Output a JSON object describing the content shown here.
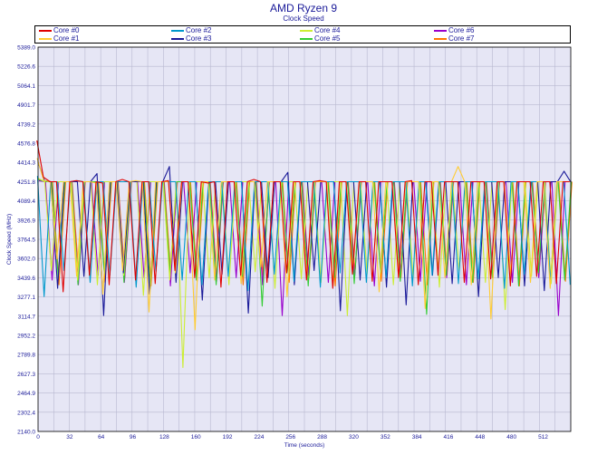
{
  "chart_data": {
    "type": "line",
    "title": "AMD Ryzen 9",
    "subtitle": "Clock Speed",
    "xlabel": "Time (seconds)",
    "ylabel": "Clock Speed (MHz)",
    "xlim": [
      0,
      540
    ],
    "ylim": [
      2140.0,
      5389.0
    ],
    "xticks": [
      "0",
      "32",
      "64",
      "96",
      "128",
      "160",
      "192",
      "224",
      "256",
      "288",
      "320",
      "352",
      "384",
      "416",
      "448",
      "480",
      "512"
    ],
    "xtick_values": [
      0,
      32,
      64,
      96,
      128,
      160,
      192,
      224,
      256,
      288,
      320,
      352,
      384,
      416,
      448,
      480,
      512
    ],
    "yticks": [
      "2140.0",
      "2302.4",
      "2464.9",
      "2627.3",
      "2789.8",
      "2952.2",
      "3114.7",
      "3277.1",
      "3439.6",
      "3602.0",
      "3764.5",
      "3926.9",
      "4089.4",
      "4251.8",
      "4414.3",
      "4576.8",
      "4739.2",
      "4901.7",
      "5064.1",
      "5226.6",
      "5389.0"
    ],
    "ytick_values": [
      2140.0,
      2302.4,
      2464.9,
      2627.3,
      2789.8,
      2952.2,
      3114.7,
      3277.1,
      3439.6,
      3602.0,
      3764.5,
      3926.9,
      4089.4,
      4251.8,
      4414.3,
      4576.8,
      4739.2,
      4901.7,
      5064.1,
      5226.6,
      5389.0
    ],
    "grid": true,
    "legend_position": "top",
    "series": [
      {
        "name": "Core #0",
        "color": "#e00000",
        "values": [
          4600,
          4290,
          4251,
          4251,
          3320,
          4251,
          4260,
          4251,
          3460,
          4251,
          4240,
          3380,
          4251,
          4270,
          4251,
          3420,
          4251,
          4251,
          3390,
          4251,
          4260,
          3500,
          4251,
          4251,
          3440,
          4251,
          4240,
          4251,
          3360,
          4251,
          4251,
          3460,
          4251,
          4270,
          4251,
          3400,
          4251,
          4251,
          3480,
          4251,
          4251,
          3420,
          4251,
          4260,
          4251,
          3350,
          4251,
          4251,
          3470,
          4251,
          4251,
          3410,
          4251,
          4251,
          4251,
          3440,
          4251,
          4260,
          3380,
          4251,
          4251,
          3460,
          4251,
          4251,
          4251,
          3400,
          4251,
          4251,
          4251,
          3430,
          4251,
          4251,
          3370,
          4251,
          4251,
          4251,
          3450,
          4251,
          4251,
          3390,
          4251,
          4251
        ]
      },
      {
        "name": "Core #1",
        "color": "#ffcc33",
        "values": [
          4450,
          4260,
          4251,
          3600,
          4251,
          4251,
          3450,
          4251,
          4251,
          4240,
          3300,
          4251,
          4251,
          3500,
          4251,
          4260,
          4251,
          3150,
          4251,
          4251,
          4251,
          3480,
          4251,
          4251,
          3000,
          4251,
          4251,
          3420,
          4251,
          4251,
          4251,
          3390,
          4251,
          4251,
          3530,
          4251,
          4251,
          4251,
          3280,
          4251,
          4251,
          3440,
          4251,
          4251,
          4251,
          3370,
          4251,
          4251,
          3500,
          4251,
          4251,
          4251,
          3320,
          4251,
          4251,
          3460,
          4251,
          4251,
          4251,
          3180,
          4251,
          4251,
          3440,
          4251,
          4380,
          4251,
          3380,
          4251,
          4251,
          3090,
          4251,
          4251,
          3470,
          4251,
          4251,
          3400,
          4251,
          4251,
          3350,
          4251,
          4251,
          4251
        ]
      },
      {
        "name": "Core #2",
        "color": "#0099cc",
        "values": [
          4300,
          3280,
          4251,
          4251,
          3500,
          4251,
          4260,
          4251,
          3400,
          4251,
          4251,
          3460,
          4251,
          4251,
          4251,
          3360,
          4251,
          4251,
          3490,
          4251,
          4251,
          4251,
          3420,
          4251,
          4251,
          3380,
          4251,
          4251,
          4251,
          3450,
          4251,
          4251,
          3330,
          4251,
          4251,
          4251,
          3470,
          4251,
          4251,
          3410,
          4251,
          4251,
          4251,
          3360,
          4251,
          4251,
          3480,
          4251,
          4251,
          4251,
          3400,
          4251,
          4251,
          3440,
          4251,
          4251,
          4251,
          3370,
          4251,
          4251,
          3460,
          4251,
          4251,
          4251,
          3390,
          4251,
          4251,
          3430,
          4251,
          4251,
          4251,
          3350,
          4251,
          4251,
          3470,
          4251,
          4251,
          4251,
          3410,
          4251,
          4251,
          3380
        ]
      },
      {
        "name": "Core #3",
        "color": "#1a1a99",
        "values": [
          4420,
          4260,
          4251,
          3350,
          4251,
          4251,
          4251,
          3450,
          4251,
          4320,
          3120,
          4251,
          4251,
          3480,
          4251,
          4251,
          4251,
          3300,
          4251,
          4251,
          4380,
          3400,
          4251,
          4251,
          4251,
          3250,
          4251,
          4251,
          3470,
          4251,
          4251,
          4251,
          3140,
          4251,
          4251,
          3440,
          4251,
          4251,
          4330,
          3380,
          4251,
          4251,
          3500,
          4251,
          4251,
          4251,
          3160,
          4251,
          4251,
          3420,
          4251,
          4251,
          4251,
          3360,
          4251,
          4251,
          3210,
          4251,
          4251,
          4251,
          3460,
          4251,
          4251,
          3390,
          4251,
          4251,
          4251,
          3280,
          4251,
          4251,
          3440,
          4251,
          4251,
          4251,
          3370,
          4251,
          4251,
          3330,
          4251,
          4251,
          4340,
          4251
        ]
      },
      {
        "name": "Core #4",
        "color": "#ccee33",
        "values": [
          4280,
          4251,
          3500,
          4251,
          4251,
          4251,
          3420,
          4251,
          4251,
          3380,
          4251,
          4251,
          4251,
          3460,
          4251,
          4251,
          3290,
          4251,
          4251,
          4251,
          3420,
          4251,
          2680,
          4251,
          4251,
          4251,
          3440,
          4251,
          4251,
          3380,
          4251,
          4251,
          4251,
          3490,
          4251,
          4251,
          3350,
          4251,
          4251,
          4251,
          3430,
          4251,
          4251,
          3400,
          4251,
          4251,
          4251,
          3120,
          4251,
          4251,
          3470,
          4251,
          4251,
          4251,
          3380,
          4251,
          4251,
          3440,
          4251,
          4251,
          4251,
          3360,
          4251,
          4251,
          3500,
          4251,
          4251,
          4251,
          3400,
          4251,
          4251,
          3170,
          4251,
          4251,
          4251,
          3450,
          4251,
          4251,
          3390,
          4251,
          4251,
          4251
        ]
      },
      {
        "name": "Core #5",
        "color": "#33cc33",
        "values": [
          4270,
          4251,
          4251,
          3440,
          4251,
          4251,
          3380,
          4251,
          4251,
          4251,
          3470,
          4251,
          4251,
          3400,
          4251,
          4251,
          4251,
          3350,
          4251,
          4251,
          3480,
          4251,
          4251,
          4251,
          3420,
          4251,
          4251,
          3380,
          4251,
          4251,
          4251,
          3450,
          4251,
          4251,
          3200,
          4251,
          4251,
          4251,
          3460,
          4251,
          4251,
          3370,
          4251,
          4251,
          4251,
          3440,
          4251,
          4251,
          3390,
          4251,
          4251,
          4251,
          3480,
          4251,
          4251,
          3410,
          4251,
          4251,
          4251,
          3130,
          4251,
          4251,
          3460,
          4251,
          4251,
          4251,
          3400,
          4251,
          4251,
          3440,
          4251,
          4251,
          4251,
          3370,
          4251,
          4251,
          3480,
          4251,
          4251,
          4251,
          3420,
          4251
        ]
      },
      {
        "name": "Core #6",
        "color": "#9900cc",
        "values": [
          4260,
          4251,
          3420,
          4251,
          4251,
          4251,
          3380,
          4251,
          4251,
          3460,
          4251,
          4251,
          4251,
          3400,
          4251,
          4251,
          3440,
          4251,
          4251,
          4251,
          3370,
          4251,
          4251,
          3480,
          4251,
          4251,
          4251,
          3410,
          4251,
          4251,
          3440,
          4251,
          4251,
          4251,
          3380,
          4251,
          4251,
          3120,
          4251,
          4251,
          4251,
          3460,
          4251,
          4251,
          3400,
          4251,
          4251,
          4251,
          3440,
          4251,
          4251,
          3370,
          4251,
          4251,
          4251,
          3480,
          4251,
          4251,
          3410,
          4251,
          4251,
          4251,
          3440,
          4251,
          4251,
          3380,
          4251,
          4251,
          4251,
          3460,
          4251,
          4251,
          3400,
          4251,
          4251,
          4251,
          3440,
          4251,
          4251,
          3120,
          4251,
          4251
        ]
      },
      {
        "name": "Core #7",
        "color": "#ff7700",
        "values": [
          4260,
          4251,
          4251,
          3380,
          4251,
          4251,
          3460,
          4251,
          4251,
          4251,
          3400,
          4251,
          4251,
          3440,
          4251,
          4251,
          4251,
          3370,
          4251,
          4251,
          3480,
          4251,
          4251,
          4251,
          3410,
          4251,
          4251,
          3440,
          4251,
          4251,
          4251,
          3380,
          4251,
          4251,
          3460,
          4251,
          4251,
          4251,
          3400,
          4251,
          4251,
          3440,
          4251,
          4251,
          4251,
          3370,
          4251,
          4251,
          3480,
          4251,
          4251,
          4251,
          3410,
          4251,
          4251,
          3440,
          4251,
          4251,
          4251,
          3380,
          4251,
          4251,
          3460,
          4251,
          4251,
          4251,
          3400,
          4251,
          4251,
          3440,
          4251,
          4251,
          4251,
          3370,
          4251,
          4251,
          3480,
          4251,
          4251,
          4251,
          3410,
          4251
        ]
      }
    ]
  }
}
